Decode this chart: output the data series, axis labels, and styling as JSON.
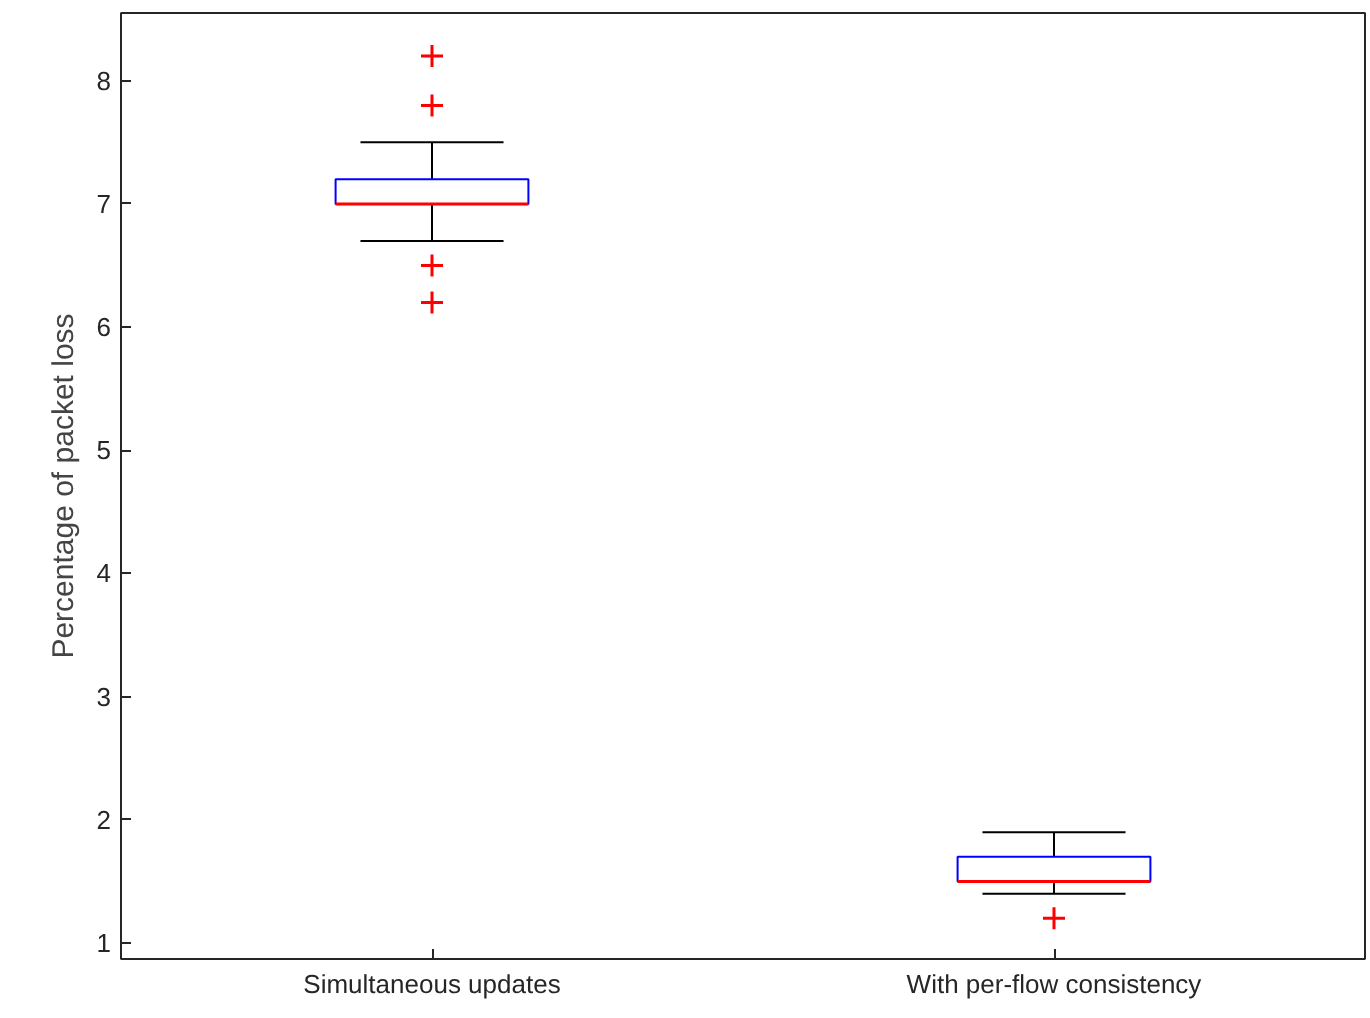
{
  "chart_data": {
    "type": "box",
    "ylabel": "Percentage of packet loss",
    "categories": [
      "Simultaneous updates",
      "With per-flow consistency"
    ],
    "boxes": [
      {
        "low": 6.7,
        "q1": 7.0,
        "median": 7.0,
        "q3": 7.2,
        "high": 7.5,
        "outliers": [
          8.2,
          7.8,
          6.5,
          6.2
        ]
      },
      {
        "low": 1.4,
        "q1": 1.5,
        "median": 1.5,
        "q3": 1.7,
        "high": 1.9,
        "outliers": [
          1.2
        ]
      }
    ],
    "color": "#0000ff",
    "marker": "cross",
    "ylim": [
      0.87,
      8.55
    ],
    "yticks": [
      1,
      2,
      3,
      4,
      5,
      6,
      7,
      8
    ],
    "grid": false
  }
}
